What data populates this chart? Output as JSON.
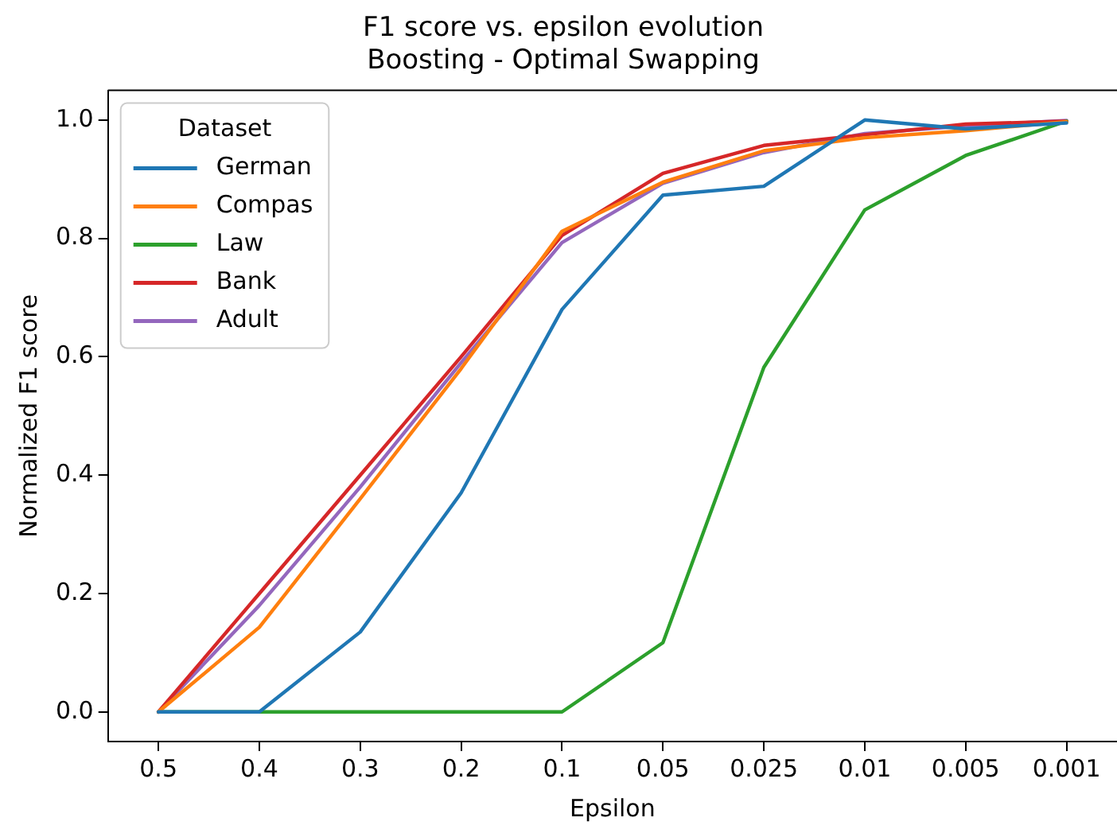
{
  "chart_data": {
    "type": "line",
    "title": [
      "F1 score vs. epsilon evolution",
      "Boosting - Optimal Swapping"
    ],
    "xlabel": "Epsilon",
    "ylabel": "Normalized F1 score",
    "legend_title": "Dataset",
    "legend": "top left",
    "grid": false,
    "line_style": "solid",
    "marker": "none",
    "categories": [
      "0.5",
      "0.4",
      "0.3",
      "0.2",
      "0.1",
      "0.05",
      "0.025",
      "0.01",
      "0.005",
      "0.001"
    ],
    "ylim": [
      -0.05,
      1.05
    ],
    "yticks": [
      {
        "value": 0,
        "label": "0.0"
      },
      {
        "value": 0.2,
        "label": "0.2"
      },
      {
        "value": 0.4,
        "label": "0.4"
      },
      {
        "value": 0.6,
        "label": "0.6"
      },
      {
        "value": 0.8,
        "label": "0.8"
      },
      {
        "value": 1,
        "label": "1.0"
      }
    ],
    "series": [
      {
        "name": "German",
        "color": "#1f77b4",
        "values": [
          0,
          0,
          0.135,
          0.37,
          0.68,
          0.873,
          0.888,
          1.0,
          0.985,
          0.995
        ]
      },
      {
        "name": "Compas",
        "color": "#ff7f0e",
        "values": [
          0,
          0.143,
          0.36,
          0.58,
          0.812,
          0.895,
          0.948,
          0.97,
          0.982,
          0.997
        ]
      },
      {
        "name": "Law",
        "color": "#2ca02c",
        "values": [
          0,
          0,
          0,
          0,
          0,
          0.117,
          0.582,
          0.848,
          0.94,
          0.998
        ]
      },
      {
        "name": "Bank",
        "color": "#d62728",
        "values": [
          0,
          0.2,
          0.4,
          0.6,
          0.805,
          0.91,
          0.957,
          0.975,
          0.993,
          0.998
        ]
      },
      {
        "name": "Adult",
        "color": "#9467bd",
        "values": [
          0,
          0.18,
          0.38,
          0.59,
          0.793,
          0.893,
          0.945,
          0.977,
          0.99,
          0.999
        ]
      }
    ]
  }
}
